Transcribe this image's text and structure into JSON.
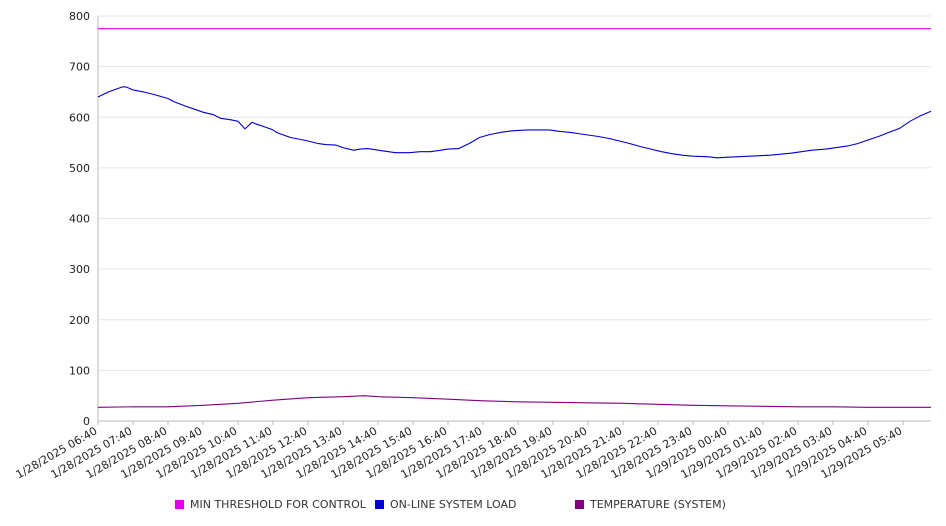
{
  "chart_data": {
    "type": "line",
    "y_ticks": [
      "0",
      "100",
      "200",
      "300",
      "400",
      "500",
      "600",
      "700",
      "800"
    ],
    "ylim": [
      0,
      800
    ],
    "x_tick_labels": [
      "1/28/2025 06:40",
      "1/28/2025 07:40",
      "1/28/2025 08:40",
      "1/28/2025 09:40",
      "1/28/2025 10:40",
      "1/28/2025 11:40",
      "1/28/2025 12:40",
      "1/28/2025 13:40",
      "1/28/2025 14:40",
      "1/28/2025 15:40",
      "1/28/2025 16:40",
      "1/28/2025 17:40",
      "1/28/2025 18:40",
      "1/28/2025 19:40",
      "1/28/2025 20:40",
      "1/28/2025 21:40",
      "1/28/2025 22:40",
      "1/28/2025 23:40",
      "1/29/2025 00:40",
      "1/29/2025 01:40",
      "1/29/2025 02:40",
      "1/29/2025 03:40",
      "1/29/2025 04:40",
      "1/29/2025 05:40"
    ],
    "x_range_hours": [
      0,
      23.8
    ],
    "grid": true,
    "legend_position": "bottom",
    "series": [
      {
        "name": "MIN THRESHOLD FOR CONTROL",
        "color": "#e000e0",
        "x_hours": [
          0,
          23.8
        ],
        "values": [
          775,
          775
        ]
      },
      {
        "name": "ON-LINE SYSTEM LOAD",
        "color": "#0000cc",
        "x_hours": [
          0,
          0.3,
          0.5,
          0.7,
          0.8,
          1.0,
          1.3,
          1.6,
          2.0,
          2.2,
          2.5,
          2.8,
          3.0,
          3.3,
          3.5,
          3.8,
          4.0,
          4.2,
          4.4,
          4.5,
          4.8,
          5.0,
          5.1,
          5.3,
          5.5,
          5.8,
          6.0,
          6.3,
          6.5,
          6.8,
          7.0,
          7.3,
          7.5,
          7.7,
          7.9,
          8.1,
          8.5,
          8.9,
          9.2,
          9.5,
          9.8,
          10.0,
          10.3,
          10.6,
          10.9,
          11.2,
          11.5,
          11.8,
          12.0,
          12.3,
          12.6,
          12.9,
          13.2,
          13.5,
          13.8,
          14.0,
          14.3,
          14.6,
          14.9,
          15.2,
          15.5,
          15.8,
          16.1,
          16.4,
          16.7,
          17.0,
          17.4,
          17.7,
          18.0,
          18.3,
          18.6,
          18.9,
          19.2,
          19.5,
          19.8,
          20.1,
          20.4,
          20.8,
          21.1,
          21.4,
          21.7,
          22.0,
          22.3,
          22.6,
          22.9,
          23.2,
          23.5,
          23.8
        ],
        "values": [
          640,
          650,
          655,
          660,
          660,
          654,
          650,
          645,
          637,
          630,
          622,
          615,
          610,
          605,
          598,
          595,
          592,
          577,
          590,
          587,
          580,
          575,
          570,
          565,
          560,
          556,
          553,
          548,
          546,
          545,
          540,
          535,
          537,
          538,
          536,
          534,
          530,
          530,
          532,
          532,
          535,
          537,
          538,
          548,
          560,
          566,
          570,
          573,
          574,
          575,
          575,
          575,
          572,
          570,
          567,
          565,
          562,
          558,
          553,
          548,
          542,
          537,
          532,
          528,
          525,
          523,
          522,
          520,
          521,
          522,
          523,
          524,
          525,
          527,
          529,
          532,
          535,
          537,
          540,
          543,
          548,
          555,
          562,
          570,
          578,
          592,
          603,
          612
        ]
      },
      {
        "name": "TEMPERATURE (SYSTEM)",
        "color": "#800080",
        "x_hours": [
          0,
          1,
          2,
          3,
          4,
          5,
          6,
          7,
          7.6,
          8,
          9,
          10,
          11,
          12,
          13,
          14,
          15,
          16,
          17,
          18,
          19,
          20,
          21,
          22,
          23,
          23.8
        ],
        "values": [
          27,
          28,
          28,
          31,
          35,
          41,
          46,
          48,
          50,
          48,
          46,
          43,
          40,
          38,
          37,
          36,
          35,
          33,
          31,
          30,
          29,
          28,
          28,
          27,
          27,
          27
        ]
      }
    ]
  }
}
